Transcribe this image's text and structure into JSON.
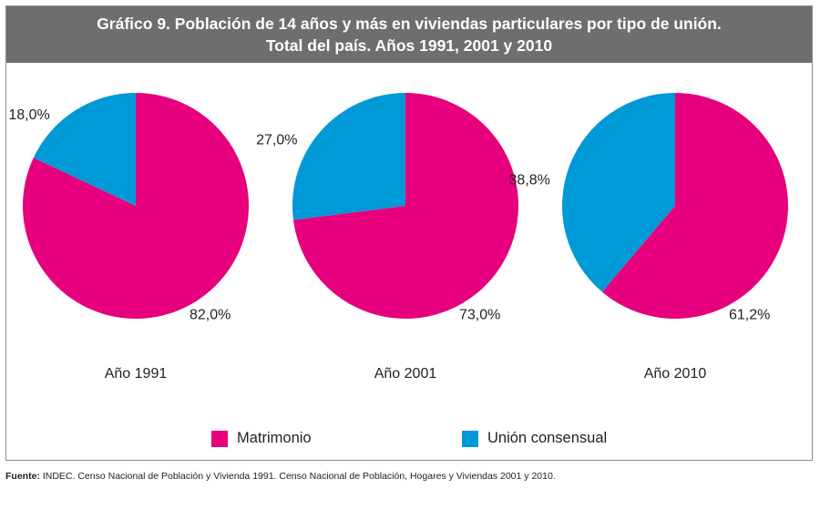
{
  "title": {
    "line1": "Gráfico 9. Población de 14 años y más en viviendas particulares por tipo de unión.",
    "line2": "Total del país. Años 1991, 2001 y 2010"
  },
  "colors": {
    "matrimonio": "#e6007e",
    "union_consensual": "#0099d8",
    "header_bg": "#6e6e6e"
  },
  "legend": {
    "matrimonio": "Matrimonio",
    "union_consensual": "Unión consensual"
  },
  "chart_data": [
    {
      "type": "pie",
      "title": "Año 1991",
      "series": [
        {
          "name": "Matrimonio",
          "value": 82.0,
          "label": "82,0%"
        },
        {
          "name": "Unión consensual",
          "value": 18.0,
          "label": "18,0%"
        }
      ]
    },
    {
      "type": "pie",
      "title": "Año 2001",
      "series": [
        {
          "name": "Matrimonio",
          "value": 73.0,
          "label": "73,0%"
        },
        {
          "name": "Unión consensual",
          "value": 27.0,
          "label": "27,0%"
        }
      ]
    },
    {
      "type": "pie",
      "title": "Año 2010",
      "series": [
        {
          "name": "Matrimonio",
          "value": 61.2,
          "label": "61,2%"
        },
        {
          "name": "Unión consensual",
          "value": 38.8,
          "label": "38,8%"
        }
      ]
    }
  ],
  "source": {
    "label": "Fuente:",
    "text": "INDEC. Censo Nacional de Población y Vivienda 1991. Censo Nacional de Población, Hogares y Viviendas 2001 y 2010."
  }
}
